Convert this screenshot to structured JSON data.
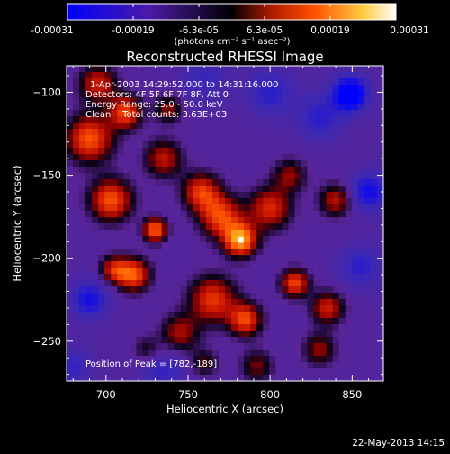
{
  "colorbar": {
    "tick_labels": [
      "-0.00031",
      "-0.00019",
      "-6.3e-05",
      "6.3e-05",
      "0.00019",
      "0.00031"
    ],
    "unit_label": "(photons cm⁻² s⁻¹ asec⁻²)",
    "range": [
      -0.00031,
      0.00031
    ]
  },
  "chart_data": {
    "type": "heatmap",
    "title": "Reconstructed RHESSI Image",
    "xlabel": "Heliocentric X (arcsec)",
    "ylabel": "Heliocentric Y (arcsec)",
    "xlim": [
      676,
      869
    ],
    "ylim": [
      -274,
      -84
    ],
    "x_ticks": [
      700,
      750,
      800,
      850
    ],
    "y_ticks": [
      -100,
      -150,
      -200,
      -250
    ],
    "x_tick_labels": [
      "700",
      "750",
      "800",
      "850"
    ],
    "y_tick_labels": [
      "−100",
      "−150",
      "−200",
      "−250"
    ],
    "peak": [
      782,
      -189
    ],
    "annotations": [
      "1-Apr-2003 14:29:52.000 to 14:31:16.000",
      "Detectors: 4F 5F 6F 7F 8F, Att 0",
      "Energy Range: 25.0 - 50.0 keV",
      "Clean    Total counts: 3.63E+03",
      "Position of Peak = [782,-189]"
    ],
    "blobs": [
      {
        "x": 782,
        "y": -189,
        "amp": 1.0,
        "s": 7
      },
      {
        "x": 770,
        "y": -175,
        "amp": 0.75,
        "s": 9
      },
      {
        "x": 758,
        "y": -160,
        "amp": 0.7,
        "s": 8
      },
      {
        "x": 800,
        "y": -170,
        "amp": 0.65,
        "s": 9
      },
      {
        "x": 730,
        "y": -183,
        "amp": 0.85,
        "s": 5
      },
      {
        "x": 703,
        "y": -165,
        "amp": 0.8,
        "s": 9
      },
      {
        "x": 690,
        "y": -128,
        "amp": 0.8,
        "s": 10
      },
      {
        "x": 712,
        "y": -112,
        "amp": 0.75,
        "s": 7
      },
      {
        "x": 695,
        "y": -95,
        "amp": 0.6,
        "s": 8
      },
      {
        "x": 735,
        "y": -140,
        "amp": 0.55,
        "s": 8
      },
      {
        "x": 717,
        "y": -210,
        "amp": 0.8,
        "s": 7
      },
      {
        "x": 705,
        "y": -207,
        "amp": 0.6,
        "s": 6
      },
      {
        "x": 765,
        "y": -225,
        "amp": 0.7,
        "s": 10
      },
      {
        "x": 785,
        "y": -237,
        "amp": 0.75,
        "s": 7
      },
      {
        "x": 745,
        "y": -245,
        "amp": 0.5,
        "s": 8
      },
      {
        "x": 815,
        "y": -215,
        "amp": 0.75,
        "s": 6
      },
      {
        "x": 835,
        "y": -230,
        "amp": 0.6,
        "s": 7
      },
      {
        "x": 840,
        "y": -165,
        "amp": 0.55,
        "s": 7
      },
      {
        "x": 812,
        "y": -150,
        "amp": 0.45,
        "s": 7
      },
      {
        "x": 830,
        "y": -255,
        "amp": 0.45,
        "s": 7
      },
      {
        "x": 792,
        "y": -265,
        "amp": 0.4,
        "s": 7
      },
      {
        "x": 738,
        "y": -110,
        "amp": 0.45,
        "s": 6
      },
      {
        "x": 760,
        "y": -263,
        "amp": 0.35,
        "s": 6
      },
      {
        "x": 725,
        "y": -255,
        "amp": 0.3,
        "s": 6
      },
      {
        "x": 849,
        "y": -101,
        "amp": -1.0,
        "s": 7
      },
      {
        "x": 860,
        "y": -160,
        "amp": -0.6,
        "s": 8
      },
      {
        "x": 690,
        "y": -225,
        "amp": -0.55,
        "s": 8
      },
      {
        "x": 830,
        "y": -115,
        "amp": -0.4,
        "s": 10
      },
      {
        "x": 800,
        "y": -100,
        "amp": -0.4,
        "s": 10
      },
      {
        "x": 855,
        "y": -205,
        "amp": -0.4,
        "s": 9
      },
      {
        "x": 680,
        "y": -265,
        "amp": -0.35,
        "s": 8
      },
      {
        "x": 735,
        "y": -268,
        "amp": -0.35,
        "s": 9
      },
      {
        "x": 760,
        "y": -92,
        "amp": -0.3,
        "s": 10
      }
    ]
  },
  "footer": {
    "timestamp": "22-May-2013 14:15"
  }
}
